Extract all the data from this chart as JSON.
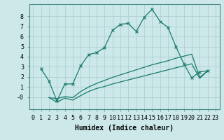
{
  "xlabel": "Humidex (Indice chaleur)",
  "background_color": "#cce8e8",
  "grid_color": "#b0d0d0",
  "line_color": "#1a7a6e",
  "xlim": [
    -0.5,
    23.5
  ],
  "ylim": [
    -1.2,
    9.2
  ],
  "xticks": [
    0,
    1,
    2,
    3,
    4,
    5,
    6,
    7,
    8,
    9,
    10,
    11,
    12,
    13,
    14,
    15,
    16,
    17,
    18,
    19,
    20,
    21,
    22,
    23
  ],
  "yticks": [
    0,
    1,
    2,
    3,
    4,
    5,
    6,
    7,
    8
  ],
  "line1_x": [
    1,
    2,
    3,
    4,
    5,
    6,
    7,
    8,
    9,
    10,
    11,
    12,
    13,
    14,
    15,
    16,
    17,
    18,
    19,
    20,
    21,
    22
  ],
  "line1_y": [
    2.8,
    1.6,
    -0.4,
    1.3,
    1.3,
    3.1,
    4.2,
    4.4,
    4.9,
    6.6,
    7.2,
    7.3,
    6.5,
    7.9,
    8.7,
    7.5,
    6.9,
    5.0,
    3.3,
    1.9,
    2.5,
    2.6
  ],
  "line2_x": [
    2,
    3,
    4,
    5,
    6,
    7,
    8,
    9,
    10,
    11,
    12,
    13,
    14,
    15,
    16,
    17,
    18,
    19,
    20,
    21,
    22
  ],
  "line2_y": [
    -0.05,
    -0.15,
    0.05,
    -0.05,
    0.55,
    1.0,
    1.35,
    1.65,
    1.95,
    2.2,
    2.45,
    2.7,
    2.95,
    3.2,
    3.4,
    3.6,
    3.85,
    4.05,
    4.25,
    1.95,
    2.6
  ],
  "line3_x": [
    2,
    3,
    4,
    5,
    6,
    7,
    8,
    9,
    10,
    11,
    12,
    13,
    14,
    15,
    16,
    17,
    18,
    19,
    20,
    21,
    22
  ],
  "line3_y": [
    -0.05,
    -0.5,
    -0.1,
    -0.3,
    0.15,
    0.55,
    0.85,
    1.05,
    1.3,
    1.5,
    1.7,
    1.9,
    2.1,
    2.3,
    2.5,
    2.7,
    2.9,
    3.1,
    3.3,
    1.85,
    2.6
  ],
  "marker": "x",
  "marker_size": 3,
  "linewidth": 0.9,
  "xlabel_fontsize": 7,
  "tick_fontsize": 6
}
